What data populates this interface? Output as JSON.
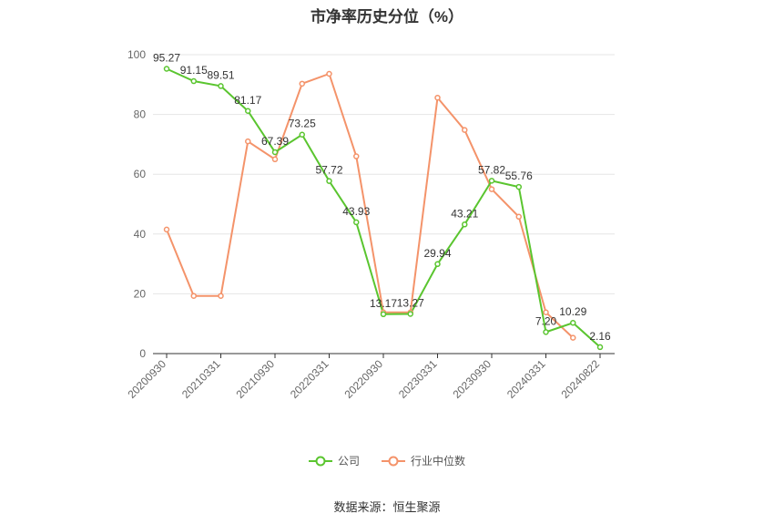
{
  "title": "市净率历史分位（%）",
  "source": "数据来源：恒生聚源",
  "chart_data": {
    "type": "line",
    "ylim": [
      0,
      100
    ],
    "yticks": [
      0,
      20,
      40,
      60,
      80,
      100
    ],
    "x_tick_labels": [
      "20200930",
      "20210331",
      "20210930",
      "20220331",
      "20220930",
      "20230331",
      "20230930",
      "20240331",
      "20240822"
    ],
    "x_tick_indices": [
      0,
      2,
      4,
      6,
      8,
      10,
      12,
      14,
      16
    ],
    "grid": true,
    "legend_position": "bottom",
    "series": [
      {
        "name": "公司",
        "color": "#5ac52f",
        "values": [
          95.27,
          91.15,
          89.51,
          81.17,
          67.39,
          73.25,
          57.72,
          43.93,
          13.17,
          13.27,
          29.94,
          43.21,
          57.82,
          55.76,
          7.2,
          10.29,
          2.16
        ],
        "labels": [
          "95.27",
          "91.15",
          "89.51",
          "81.17",
          "67.39",
          "73.25",
          "57.72",
          "43.93",
          "13.17",
          "13.27",
          "29.94",
          "43.21",
          "57.82",
          "55.76",
          "7.20",
          "10.29",
          "2.16"
        ]
      },
      {
        "name": "行业中位数",
        "color": "#f4936a",
        "values": [
          41.5,
          19.3,
          19.3,
          71,
          65,
          90.3,
          93.6,
          66,
          13.8,
          13.8,
          85.6,
          74.8,
          55,
          45.8,
          13.8,
          5.3
        ]
      }
    ]
  }
}
